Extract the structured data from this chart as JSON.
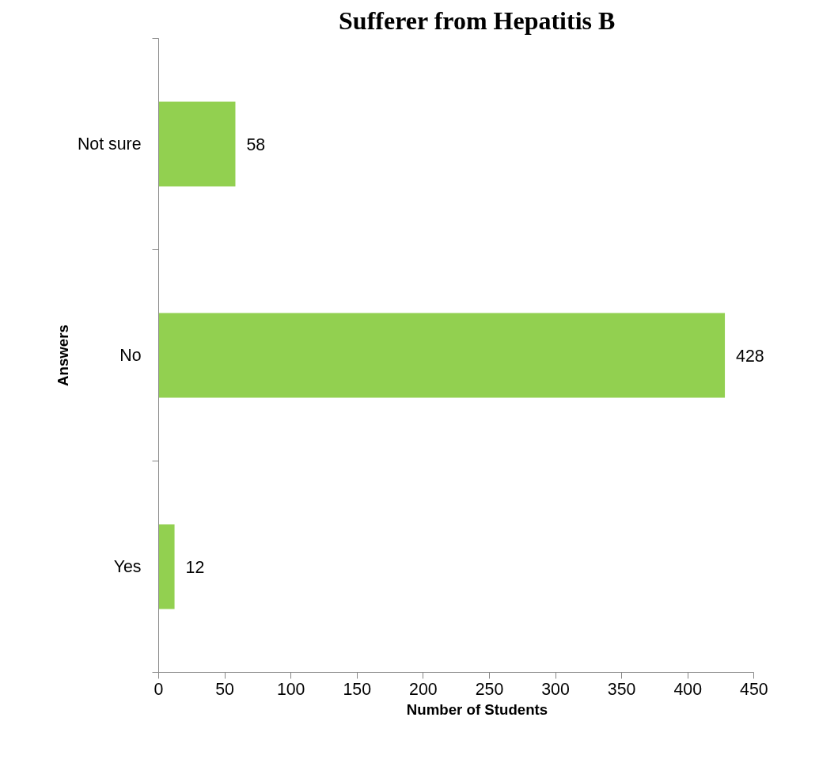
{
  "chart_data": {
    "type": "bar",
    "orientation": "horizontal",
    "title": "Sufferer from Hepatitis B",
    "xlabel": "Number of Students",
    "ylabel": "Answers",
    "categories": [
      "Not sure",
      "No",
      "Yes"
    ],
    "values": [
      58,
      428,
      12
    ],
    "color": "#92d050",
    "xlim": [
      0,
      450
    ],
    "xticks": [
      0,
      50,
      100,
      150,
      200,
      250,
      300,
      350,
      400,
      450
    ],
    "grid": false,
    "data_labels": true
  }
}
